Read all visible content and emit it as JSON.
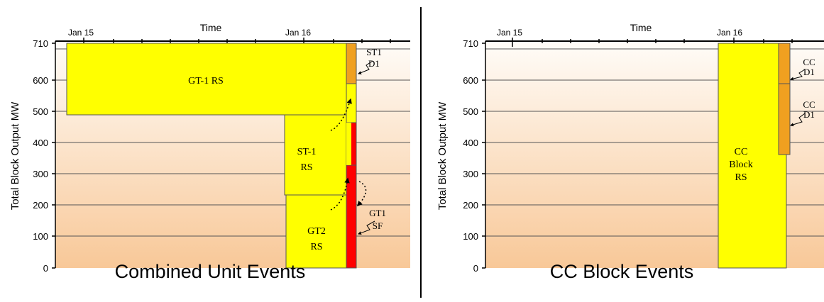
{
  "charts": [
    {
      "id": "left",
      "caption": "Combined Unit Events",
      "time_label": "Time",
      "date_ticks": [
        "Jan 15",
        "Jan 16"
      ],
      "ylabel": "Total Block Output MW",
      "y_ticks": [
        "0",
        "100",
        "200",
        "300",
        "400",
        "500",
        "600",
        "710"
      ],
      "events": [
        {
          "label": "GT-1 RS",
          "fill": "#ffff00"
        },
        {
          "label": "ST-1 RS",
          "fill": "#ffff00"
        },
        {
          "label": "GT2 RS",
          "fill": "#ffff00"
        },
        {
          "label": "ST1 D1",
          "fill": "#f0a020"
        },
        {
          "label": "GT1 SF",
          "fill": "#ff0000"
        }
      ]
    },
    {
      "id": "right",
      "caption": "CC Block Events",
      "time_label": "Time",
      "date_ticks": [
        "Jan 15",
        "Jan 16"
      ],
      "ylabel": "Total Block Output MW",
      "y_ticks": [
        "0",
        "100",
        "200",
        "300",
        "400",
        "500",
        "600",
        "710"
      ],
      "events": [
        {
          "label": "CC Block RS",
          "fill": "#ffff00"
        },
        {
          "label": "CC D1",
          "fill": "#f0a020"
        },
        {
          "label": "CC D1",
          "fill": "#f0a020"
        }
      ]
    }
  ],
  "colors": {
    "gradient_top": "#ffffff",
    "gradient_bottom": "#f8c898",
    "grid": "#555555"
  }
}
